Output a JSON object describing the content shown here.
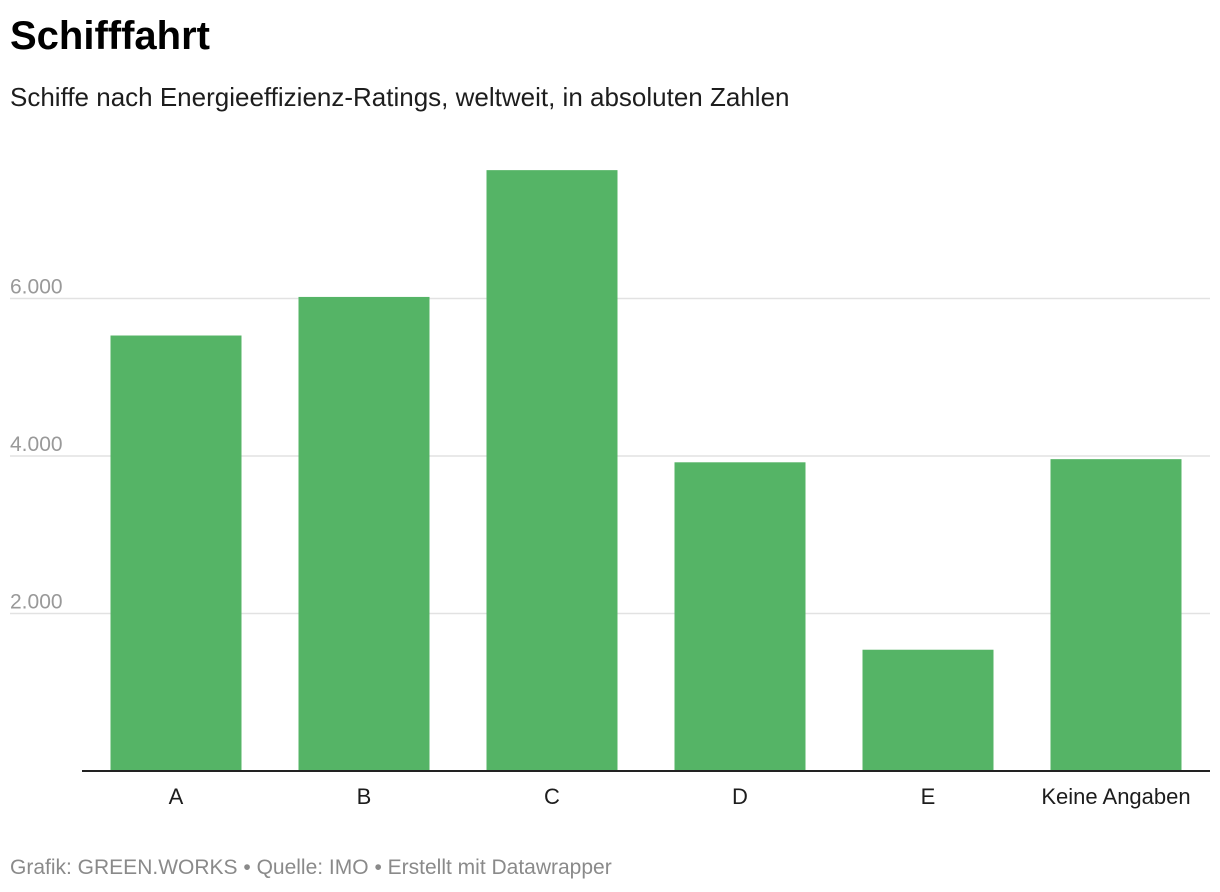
{
  "title": "Schifffahrt",
  "subtitle": "Schiffe nach Energieeffizienz-Ratings, weltweit, in absoluten Zahlen",
  "footer": {
    "grafik": "Grafik: GREEN.WORKS",
    "separator": " • ",
    "quelle": "Quelle: IMO",
    "erstellt": "Erstellt mit Datawrapper"
  },
  "colors": {
    "bar": "#55b466",
    "grid": "#e2e2e2",
    "axis": "#222222",
    "tick_text": "#999999",
    "category_text": "#1d1d1d"
  },
  "chart_data": {
    "type": "bar",
    "title": "Schifffahrt",
    "subtitle": "Schiffe nach Energieeffizienz-Ratings, weltweit, in absoluten Zahlen",
    "categories": [
      "A",
      "B",
      "C",
      "D",
      "E",
      "Keine Angaben"
    ],
    "values": [
      5530,
      6020,
      7630,
      3920,
      1540,
      3960
    ],
    "xlabel": "",
    "ylabel": "",
    "ylim": [
      0,
      8000
    ],
    "yticks": [
      2000,
      4000,
      6000
    ],
    "ytick_labels": [
      "2.000",
      "4.000",
      "6.000"
    ],
    "grid": true,
    "legend": "none"
  }
}
